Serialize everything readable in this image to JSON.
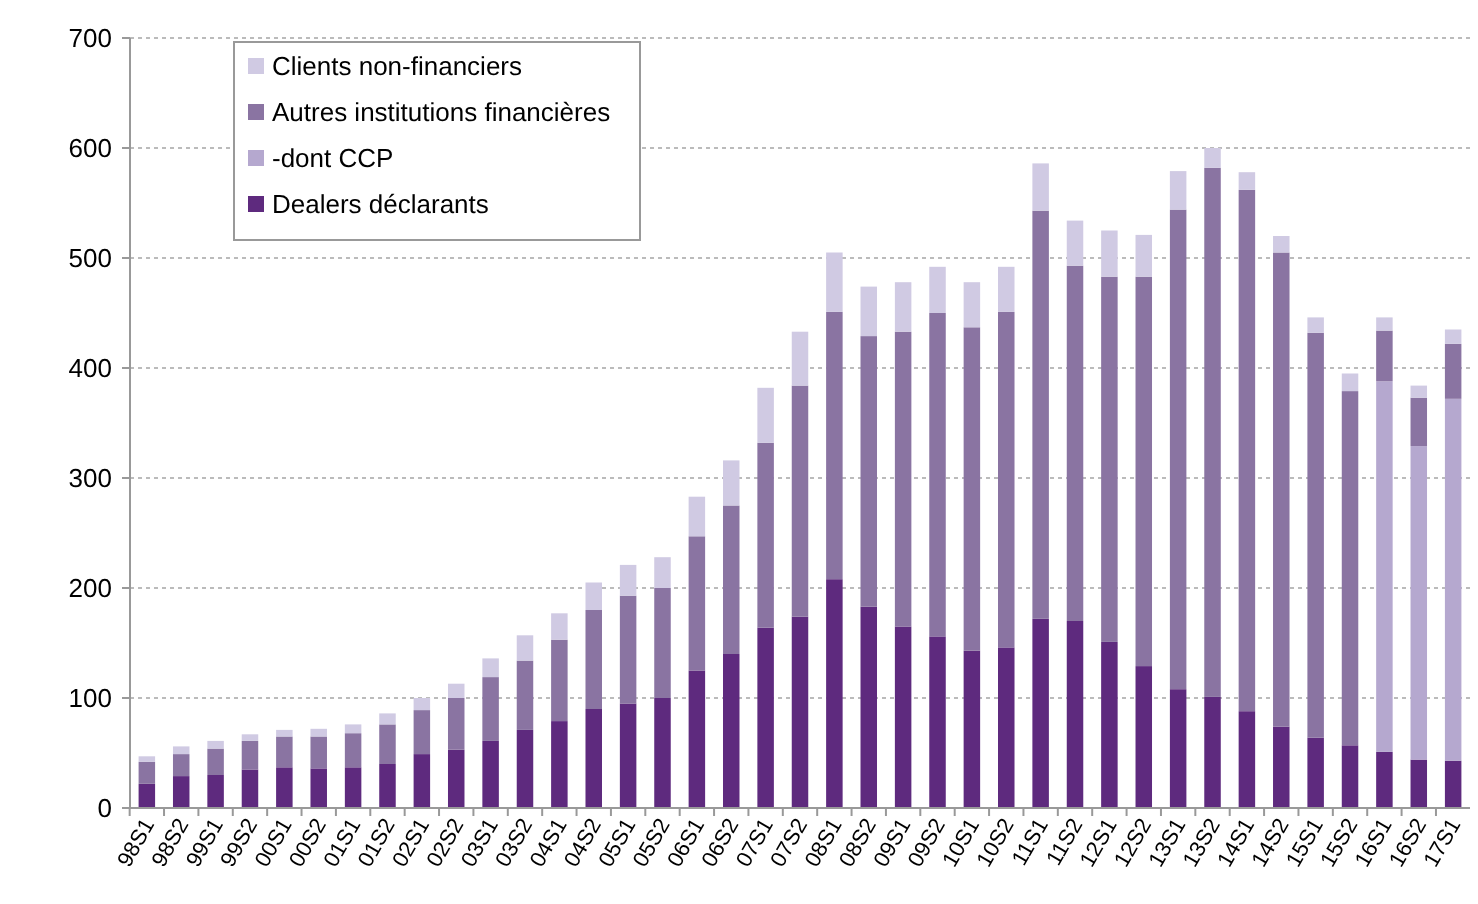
{
  "chart_data": {
    "type": "bar",
    "stacked": true,
    "legend": "top left",
    "grid": "y",
    "ylim": [
      0,
      700
    ],
    "yticks": [
      0,
      100,
      200,
      300,
      400,
      500,
      600,
      700
    ],
    "categories": [
      "98S1",
      "98S2",
      "99S1",
      "99S2",
      "00S1",
      "00S2",
      "01S1",
      "01S2",
      "02S1",
      "02S2",
      "03S1",
      "03S2",
      "04S1",
      "04S2",
      "05S1",
      "05S2",
      "06S1",
      "06S2",
      "07S1",
      "07S2",
      "08S1",
      "08S2",
      "09S1",
      "09S2",
      "10S1",
      "10S2",
      "11S1",
      "11S2",
      "12S1",
      "12S2",
      "13S1",
      "13S2",
      "14S1",
      "14S2",
      "15S1",
      "15S2",
      "16S1",
      "16S2",
      "17S1"
    ],
    "series": [
      {
        "name": "Dealers déclarants",
        "color": "#5e2a7e",
        "values": [
          22,
          29,
          30,
          35,
          37,
          36,
          37,
          40,
          49,
          53,
          61,
          71,
          79,
          90,
          95,
          100,
          125,
          140,
          164,
          174,
          208,
          183,
          165,
          156,
          143,
          146,
          172,
          170,
          151,
          129,
          108,
          101,
          88,
          74,
          64,
          57,
          51,
          44,
          43
        ]
      },
      {
        "name": "-dont CCP",
        "color": "#b5a8cf",
        "values": [
          null,
          null,
          null,
          null,
          null,
          null,
          null,
          null,
          null,
          null,
          null,
          null,
          null,
          null,
          null,
          null,
          null,
          null,
          null,
          null,
          null,
          null,
          null,
          null,
          null,
          null,
          null,
          null,
          null,
          null,
          null,
          null,
          null,
          null,
          null,
          null,
          337,
          285,
          329
        ]
      },
      {
        "name": "Autres institutions financières",
        "color": "#8a74a2",
        "values": [
          20,
          20,
          24,
          26,
          28,
          29,
          31,
          36,
          40,
          47,
          58,
          63,
          74,
          90,
          98,
          100,
          122,
          135,
          168,
          210,
          243,
          246,
          268,
          294,
          294,
          305,
          371,
          323,
          332,
          354,
          436,
          481,
          474,
          431,
          368,
          322,
          46,
          44,
          50
        ]
      },
      {
        "name": "Clients non-financiers",
        "color": "#d0cae3",
        "values": [
          5,
          7,
          7,
          6,
          6,
          7,
          8,
          10,
          11,
          13,
          17,
          23,
          24,
          25,
          28,
          28,
          36,
          41,
          50,
          49,
          54,
          45,
          45,
          42,
          41,
          41,
          43,
          41,
          42,
          38,
          35,
          18,
          16,
          15,
          14,
          16,
          12,
          11,
          13
        ]
      }
    ]
  }
}
